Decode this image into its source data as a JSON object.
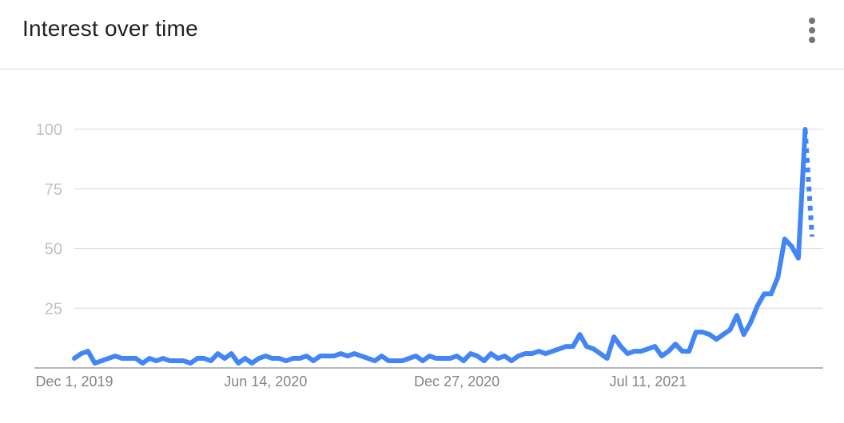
{
  "header": {
    "title": "Interest over time",
    "menu_icon": "more-vert-icon"
  },
  "colors": {
    "line": "#4285f4",
    "grid": "#dadce0"
  },
  "chart_data": {
    "type": "line",
    "title": "Interest over time",
    "ylim": [
      0,
      100
    ],
    "yticks": [
      25,
      50,
      75,
      100
    ],
    "xticks": [
      {
        "label": "Dec 1, 2019",
        "index": 0
      },
      {
        "label": "Jun 14, 2020",
        "index": 28
      },
      {
        "label": "Dec 27, 2020",
        "index": 56
      },
      {
        "label": "Jul 11, 2021",
        "index": 84
      }
    ],
    "grid": true,
    "partial_last_point": true,
    "series": [
      {
        "values": [
          4,
          6,
          7,
          2,
          3,
          4,
          5,
          4,
          4,
          4,
          2,
          4,
          3,
          4,
          3,
          3,
          3,
          2,
          4,
          4,
          3,
          6,
          4,
          6,
          2,
          4,
          2,
          4,
          5,
          4,
          4,
          3,
          4,
          4,
          5,
          3,
          5,
          5,
          5,
          6,
          5,
          6,
          5,
          4,
          3,
          5,
          3,
          3,
          3,
          4,
          5,
          3,
          5,
          4,
          4,
          4,
          5,
          3,
          6,
          5,
          3,
          6,
          4,
          5,
          3,
          5,
          6,
          6,
          7,
          6,
          7,
          8,
          9,
          9,
          14,
          9,
          8,
          6,
          4,
          13,
          9,
          6,
          7,
          7,
          8,
          9,
          5,
          7,
          10,
          7,
          7,
          15,
          15,
          14,
          12,
          14,
          16,
          22,
          14,
          19,
          26,
          31,
          31,
          38,
          54,
          51,
          46,
          100,
          55
        ]
      }
    ]
  }
}
